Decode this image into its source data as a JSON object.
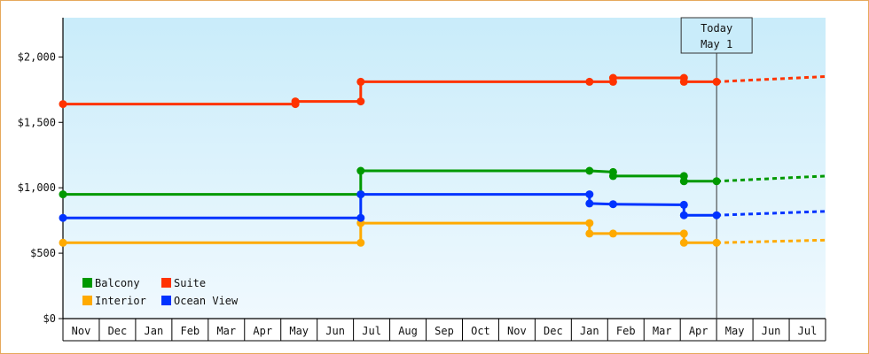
{
  "chart_data": {
    "type": "line",
    "y_ticks": [
      "$0",
      "$500",
      "$1,000",
      "$1,500",
      "$2,000"
    ],
    "y_tick_values": [
      0,
      500,
      1000,
      1500,
      2000
    ],
    "ylim": [
      0,
      2300
    ],
    "months": [
      "Nov",
      "Dec",
      "Jan",
      "Feb",
      "Mar",
      "Apr",
      "May",
      "Jun",
      "Jul",
      "Aug",
      "Sep",
      "Oct",
      "Nov",
      "Dec",
      "Jan",
      "Feb",
      "Mar",
      "Apr",
      "May",
      "Jun",
      "Jul"
    ],
    "today": {
      "line1": "Today",
      "line2": "May 1",
      "x": 18.0
    },
    "colors": {
      "Balcony": "#009900",
      "Suite": "#ff3300",
      "Interior": "#ffaa00",
      "Ocean View": "#0033ff",
      "plot_bg_top": "#c9ecfa",
      "plot_bg_bottom": "#f0f9fe"
    },
    "legend_position": "bottom-left",
    "series": [
      {
        "name": "Balcony",
        "points": [
          [
            0.0,
            950
          ],
          [
            8.2,
            950
          ],
          [
            8.2,
            1130
          ],
          [
            14.5,
            1130
          ],
          [
            15.15,
            1120
          ],
          [
            15.15,
            1090
          ],
          [
            17.1,
            1090
          ],
          [
            17.1,
            1050
          ],
          [
            18.0,
            1050
          ]
        ],
        "forecast": [
          [
            18.0,
            1050
          ],
          [
            21.0,
            1090
          ]
        ]
      },
      {
        "name": "Suite",
        "points": [
          [
            0.0,
            1640
          ],
          [
            6.4,
            1640
          ],
          [
            6.4,
            1660
          ],
          [
            8.2,
            1660
          ],
          [
            8.2,
            1810
          ],
          [
            14.5,
            1810
          ],
          [
            15.15,
            1810
          ],
          [
            15.15,
            1840
          ],
          [
            17.1,
            1840
          ],
          [
            17.1,
            1810
          ],
          [
            18.0,
            1810
          ]
        ],
        "forecast": [
          [
            18.0,
            1810
          ],
          [
            21.0,
            1850
          ]
        ]
      },
      {
        "name": "Interior",
        "points": [
          [
            0.0,
            580
          ],
          [
            8.2,
            580
          ],
          [
            8.2,
            730
          ],
          [
            14.5,
            730
          ],
          [
            14.5,
            650
          ],
          [
            15.15,
            650
          ],
          [
            17.1,
            650
          ],
          [
            17.1,
            580
          ],
          [
            18.0,
            580
          ]
        ],
        "forecast": [
          [
            18.0,
            580
          ],
          [
            21.0,
            600
          ]
        ]
      },
      {
        "name": "Ocean View",
        "points": [
          [
            0.0,
            770
          ],
          [
            8.2,
            770
          ],
          [
            8.2,
            950
          ],
          [
            14.5,
            950
          ],
          [
            14.5,
            880
          ],
          [
            15.15,
            875
          ],
          [
            17.1,
            870
          ],
          [
            17.1,
            790
          ],
          [
            18.0,
            790
          ]
        ],
        "forecast": [
          [
            18.0,
            790
          ],
          [
            21.0,
            820
          ]
        ]
      }
    ]
  }
}
